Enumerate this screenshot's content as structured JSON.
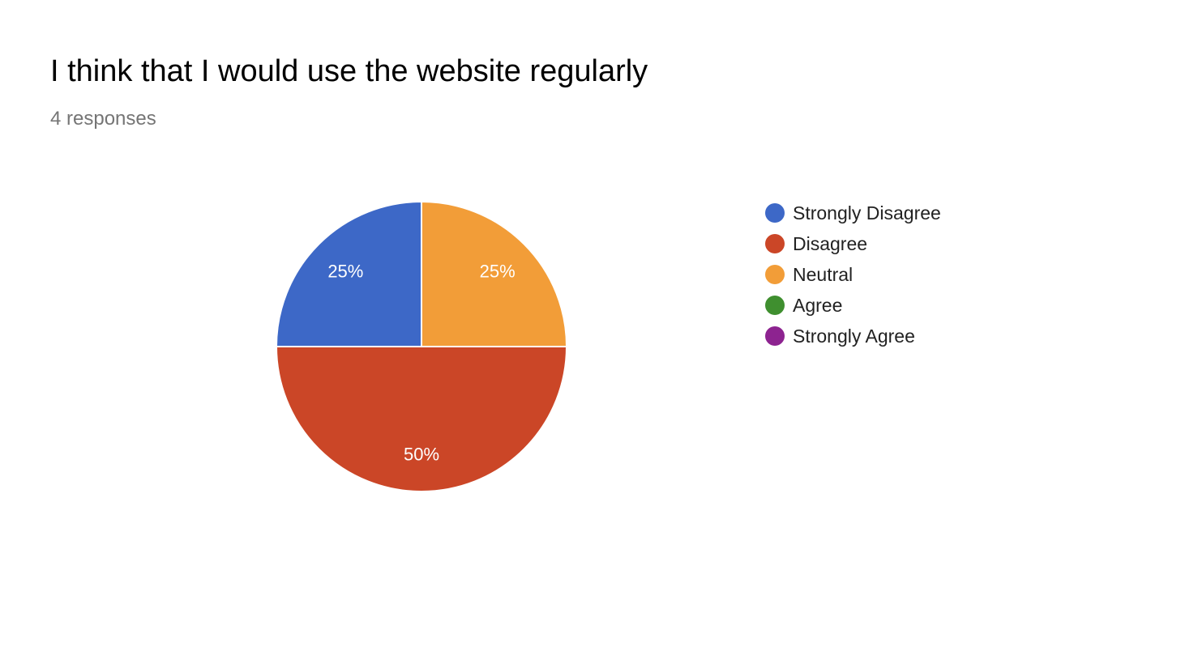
{
  "chart_data": {
    "type": "pie",
    "title": "I think that I would use the website regularly",
    "subtitle": "4 responses",
    "categories": [
      "Strongly Disagree",
      "Disagree",
      "Neutral",
      "Agree",
      "Strongly Agree"
    ],
    "values": [
      1,
      2,
      1,
      0,
      0
    ],
    "percent_labels": [
      "25%",
      "50%",
      "25%",
      "",
      ""
    ],
    "colors": [
      "#3d68c7",
      "#cb4627",
      "#f29d38",
      "#3f8f2f",
      "#8d2390"
    ],
    "legend_position": "right",
    "start_angle": "12 o'clock",
    "direction": "counterclockwise"
  }
}
